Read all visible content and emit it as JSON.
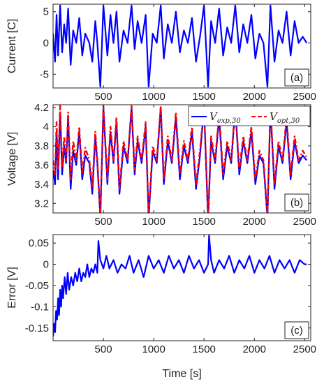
{
  "chart_data": [
    {
      "type": "line",
      "panel": "(a)",
      "ylabel": "Current [C]",
      "xlabel": "",
      "xlim": [
        0,
        2560
      ],
      "ylim": [
        -7.2,
        6.2
      ],
      "xticks": [
        500,
        1000,
        1500,
        2000,
        2500
      ],
      "yticks": [
        -5,
        0,
        5
      ],
      "series": [
        {
          "color": "#0000ff",
          "x": [
            0,
            20,
            35,
            50,
            70,
            90,
            110,
            130,
            150,
            175,
            200,
            230,
            260,
            290,
            320,
            360,
            390,
            420,
            440,
            470,
            500,
            540,
            570,
            600,
            630,
            660,
            700,
            740,
            780,
            810,
            840,
            880,
            920,
            950,
            990,
            1030,
            1070,
            1100,
            1140,
            1180,
            1220,
            1260,
            1300,
            1340,
            1380,
            1420,
            1460,
            1500,
            1540,
            1570,
            1610,
            1650,
            1690,
            1730,
            1770,
            1810,
            1850,
            1890,
            1930,
            1970,
            2010,
            2050,
            2090,
            2130,
            2160,
            2200,
            2240,
            2280,
            2320,
            2360,
            2400,
            2440,
            2480,
            2520
          ],
          "y": [
            1.5,
            -3.0,
            4.5,
            -2.0,
            6.0,
            -1.5,
            3.0,
            0.0,
            5.5,
            -3.5,
            2.0,
            0.0,
            4.0,
            -2.0,
            1.5,
            0.0,
            -3.0,
            3.5,
            0.0,
            -7.0,
            6.0,
            -2.0,
            4.5,
            0.0,
            5.0,
            -3.0,
            2.0,
            0.0,
            6.0,
            -1.0,
            3.5,
            0.0,
            4.5,
            -7.0,
            1.5,
            0.0,
            6.0,
            -2.5,
            3.0,
            0.0,
            5.0,
            -1.5,
            2.0,
            0.0,
            4.0,
            -3.0,
            1.0,
            6.0,
            -7.0,
            3.5,
            0.0,
            5.5,
            -2.0,
            2.5,
            0.0,
            6.0,
            -1.5,
            3.0,
            0.0,
            4.5,
            -2.5,
            1.5,
            0.0,
            -7.0,
            6.0,
            -3.0,
            2.0,
            0.0,
            5.0,
            -2.0,
            3.5,
            0.0,
            1.0,
            0.0
          ]
        }
      ]
    },
    {
      "type": "line",
      "panel": "(b)",
      "ylabel": "Voltage [V]",
      "xlabel": "",
      "xlim": [
        0,
        2560
      ],
      "ylim": [
        3.1,
        4.23
      ],
      "xticks": [
        500,
        1000,
        1500,
        2000,
        2500
      ],
      "yticks": [
        3.2,
        3.4,
        3.6,
        3.8,
        4.0,
        4.2
      ],
      "legend": "top-right",
      "series": [
        {
          "name": "V_exp,30",
          "color": "#0000ff",
          "style": "solid",
          "x": [
            0,
            20,
            35,
            50,
            70,
            90,
            110,
            130,
            150,
            175,
            200,
            230,
            260,
            290,
            320,
            360,
            390,
            420,
            440,
            470,
            500,
            540,
            570,
            600,
            630,
            660,
            700,
            740,
            780,
            810,
            840,
            880,
            920,
            950,
            990,
            1030,
            1070,
            1100,
            1140,
            1180,
            1220,
            1260,
            1300,
            1340,
            1380,
            1420,
            1460,
            1500,
            1540,
            1570,
            1610,
            1650,
            1690,
            1730,
            1770,
            1810,
            1850,
            1890,
            1930,
            1970,
            2010,
            2050,
            2090,
            2130,
            2160,
            2200,
            2240,
            2280,
            2320,
            2360,
            2400,
            2440,
            2480,
            2520
          ],
          "y": [
            3.55,
            3.4,
            3.95,
            3.45,
            4.15,
            3.5,
            3.8,
            3.62,
            4.1,
            3.35,
            3.75,
            3.6,
            3.95,
            3.45,
            3.7,
            3.62,
            3.3,
            3.9,
            3.62,
            3.05,
            4.2,
            3.4,
            3.95,
            3.62,
            4.05,
            3.3,
            3.8,
            3.62,
            4.2,
            3.5,
            3.85,
            3.62,
            4.0,
            3.05,
            3.75,
            3.62,
            4.2,
            3.4,
            3.85,
            3.62,
            4.1,
            3.45,
            3.8,
            3.62,
            3.95,
            3.35,
            3.7,
            4.2,
            3.02,
            3.85,
            3.62,
            4.1,
            3.45,
            3.8,
            3.62,
            4.2,
            3.5,
            3.85,
            3.62,
            3.95,
            3.4,
            3.7,
            3.62,
            3.05,
            4.2,
            3.35,
            3.8,
            3.62,
            4.05,
            3.45,
            3.85,
            3.62,
            3.7,
            3.65
          ]
        },
        {
          "name": "V_opt,30",
          "color": "#ff0000",
          "style": "dashed",
          "x": [
            0,
            20,
            35,
            50,
            70,
            90,
            110,
            130,
            150,
            175,
            200,
            230,
            260,
            290,
            320,
            360,
            390,
            420,
            440,
            470,
            500,
            540,
            570,
            600,
            630,
            660,
            700,
            740,
            780,
            810,
            840,
            880,
            920,
            950,
            990,
            1030,
            1070,
            1100,
            1140,
            1180,
            1220,
            1260,
            1300,
            1340,
            1380,
            1420,
            1460,
            1500,
            1540,
            1570,
            1610,
            1650,
            1690,
            1730,
            1770,
            1810,
            1850,
            1890,
            1930,
            1970,
            2010,
            2050,
            2090,
            2130,
            2160,
            2200,
            2240,
            2280,
            2320,
            2360,
            2400,
            2440,
            2480,
            2520
          ],
          "y": [
            3.65,
            3.5,
            4.05,
            3.55,
            4.22,
            3.58,
            3.9,
            3.65,
            4.15,
            3.45,
            3.85,
            3.65,
            4.0,
            3.52,
            3.78,
            3.65,
            3.38,
            3.95,
            3.65,
            3.08,
            4.22,
            3.45,
            4.0,
            3.65,
            4.1,
            3.35,
            3.85,
            3.65,
            4.22,
            3.55,
            3.9,
            3.65,
            4.05,
            3.08,
            3.8,
            3.65,
            4.22,
            3.45,
            3.9,
            3.65,
            4.15,
            3.5,
            3.85,
            3.65,
            4.0,
            3.4,
            3.75,
            4.22,
            3.05,
            3.9,
            3.65,
            4.15,
            3.5,
            3.85,
            3.65,
            4.22,
            3.55,
            3.9,
            3.65,
            4.0,
            3.45,
            3.75,
            3.65,
            3.08,
            4.22,
            3.4,
            3.85,
            3.65,
            4.1,
            3.5,
            3.9,
            3.65,
            3.75,
            3.68
          ]
        }
      ]
    },
    {
      "type": "line",
      "panel": "(c)",
      "ylabel": "Error [V]",
      "xlabel": "Time [s]",
      "xlim": [
        0,
        2560
      ],
      "ylim": [
        -0.18,
        0.07
      ],
      "xticks": [
        500,
        1000,
        1500,
        2000,
        2500
      ],
      "yticks": [
        -0.15,
        -0.1,
        -0.05,
        0,
        0.05
      ],
      "series": [
        {
          "color": "#0000ff",
          "x": [
            0,
            10,
            20,
            30,
            40,
            50,
            60,
            70,
            80,
            90,
            100,
            115,
            130,
            145,
            160,
            180,
            200,
            220,
            240,
            260,
            280,
            300,
            320,
            340,
            360,
            380,
            400,
            420,
            440,
            450,
            470,
            500,
            530,
            560,
            600,
            640,
            680,
            720,
            760,
            800,
            850,
            900,
            950,
            1000,
            1050,
            1100,
            1150,
            1200,
            1250,
            1300,
            1350,
            1400,
            1450,
            1500,
            1540,
            1550,
            1570,
            1600,
            1650,
            1700,
            1750,
            1800,
            1850,
            1900,
            1950,
            2000,
            2050,
            2100,
            2150,
            2200,
            2250,
            2300,
            2350,
            2400,
            2450,
            2500,
            2520
          ],
          "y": [
            -0.17,
            -0.14,
            -0.16,
            -0.11,
            -0.13,
            -0.08,
            -0.12,
            -0.06,
            -0.1,
            -0.05,
            -0.08,
            -0.03,
            -0.07,
            -0.02,
            -0.06,
            -0.03,
            -0.05,
            -0.02,
            -0.04,
            -0.01,
            -0.04,
            -0.02,
            -0.03,
            0.0,
            -0.03,
            -0.01,
            -0.02,
            0.0,
            -0.02,
            0.055,
            0.01,
            -0.01,
            0.02,
            -0.01,
            0.01,
            -0.02,
            0.0,
            -0.01,
            0.02,
            -0.02,
            0.01,
            -0.03,
            0.02,
            -0.01,
            0.01,
            -0.02,
            0.02,
            -0.01,
            0.01,
            -0.02,
            0.02,
            -0.01,
            0.01,
            -0.02,
            0.0,
            0.068,
            0.01,
            -0.02,
            0.01,
            -0.01,
            0.02,
            -0.02,
            0.01,
            -0.01,
            0.02,
            -0.02,
            0.01,
            -0.01,
            0.02,
            -0.02,
            0.01,
            -0.01,
            0.01,
            -0.02,
            0.01,
            0.0,
            0.0
          ]
        }
      ]
    }
  ]
}
